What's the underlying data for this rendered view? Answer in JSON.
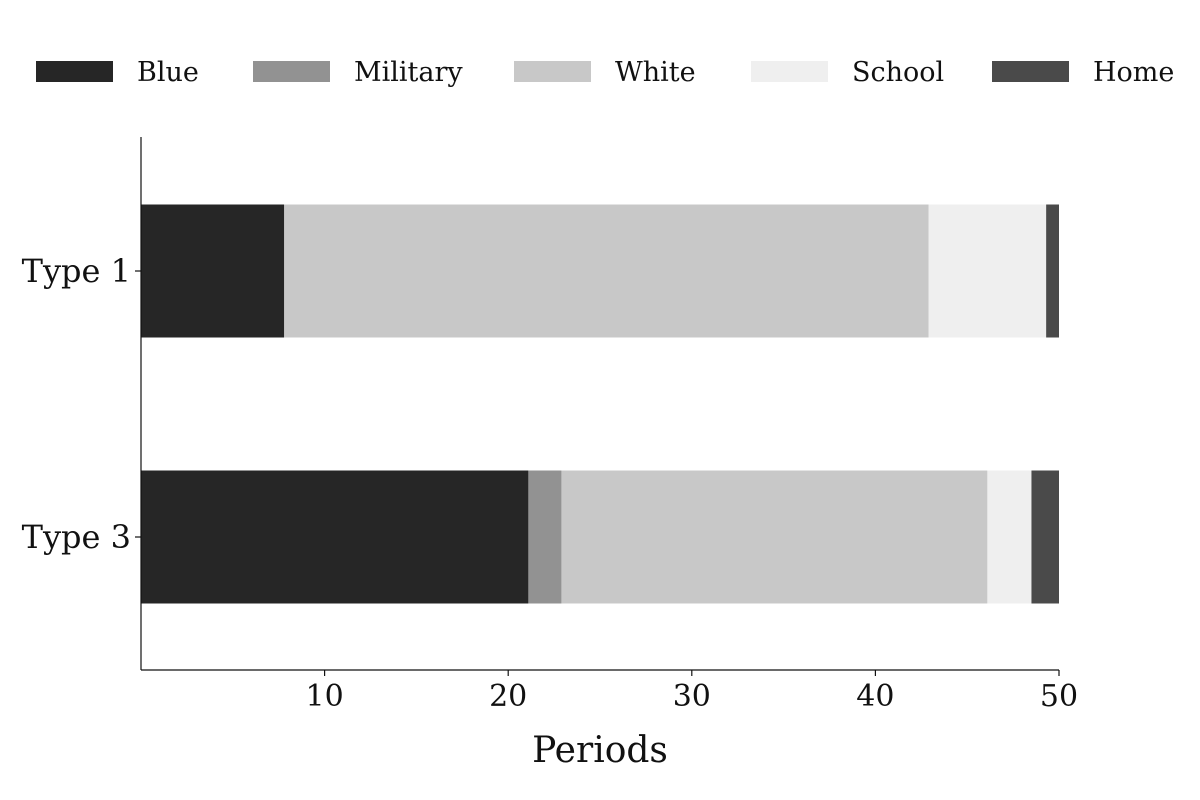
{
  "chart_data": {
    "type": "bar",
    "orientation": "horizontal",
    "stacked": true,
    "categories": [
      "Type 1",
      "Type 3"
    ],
    "series": [
      {
        "name": "Blue",
        "color": "#262626",
        "values": [
          7.8,
          21.1
        ]
      },
      {
        "name": "Military",
        "color": "#929292",
        "values": [
          0.0,
          1.8
        ]
      },
      {
        "name": "White",
        "color": "#c8c8c8",
        "values": [
          35.1,
          23.2
        ]
      },
      {
        "name": "School",
        "color": "#efefef",
        "values": [
          6.4,
          2.4
        ]
      },
      {
        "name": "Home",
        "color": "#4a4a4a",
        "values": [
          0.7,
          1.5
        ]
      }
    ],
    "xlabel": "Periods",
    "ylabel": "",
    "xlim": [
      0,
      50
    ],
    "xticks": [
      10,
      20,
      30,
      40,
      50
    ],
    "grid": false,
    "legend_position": "top"
  }
}
